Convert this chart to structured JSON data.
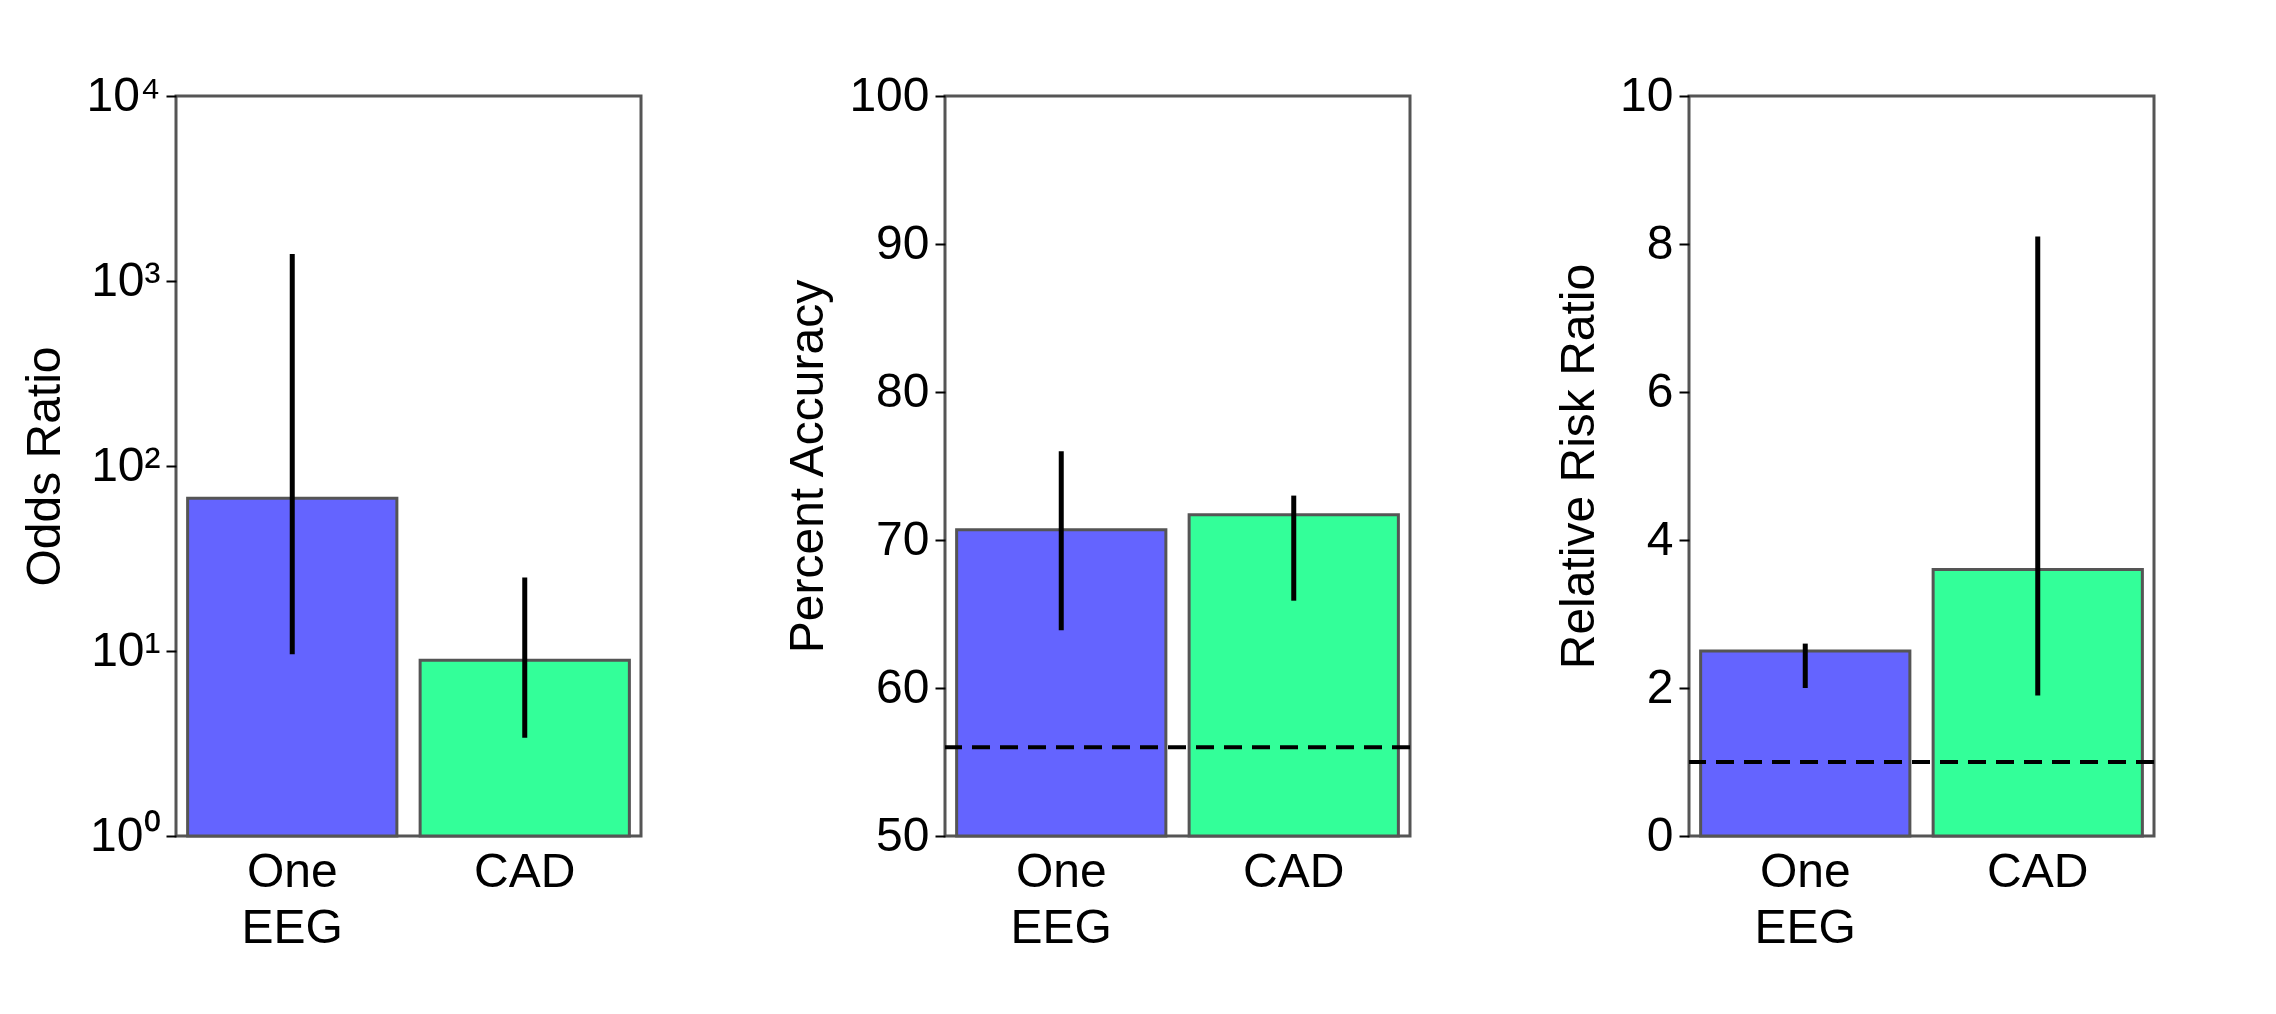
{
  "chart_data": [
    {
      "type": "bar",
      "ylabel": "Odds Ratio",
      "categories": [
        "One EEG",
        "CAD"
      ],
      "values": [
        67,
        8.9
      ],
      "colors": [
        "#6464ff",
        "#33ff99"
      ],
      "errors": [
        [
          9.6,
          1400
        ],
        [
          3.4,
          25
        ]
      ],
      "log": true,
      "ylim": [
        1,
        10000
      ],
      "yticks": [
        {
          "value": 1,
          "label": "10⁰"
        },
        {
          "value": 10,
          "label": "10¹"
        },
        {
          "value": 100,
          "label": "10²"
        },
        {
          "value": 1000,
          "label": "10³"
        },
        {
          "value": 10000,
          "label": "10⁴"
        }
      ]
    },
    {
      "type": "bar",
      "ylabel": "Percent Accuracy",
      "categories": [
        "One EEG",
        "CAD"
      ],
      "values": [
        70.7,
        71.7
      ],
      "colors": [
        "#6464ff",
        "#33ff99"
      ],
      "errors": [
        [
          63.9,
          76
        ],
        [
          65.9,
          73
        ]
      ],
      "ylim": [
        50,
        100
      ],
      "yticks": [
        50,
        60,
        70,
        80,
        90,
        100
      ],
      "ref_lines": [
        {
          "axis": "y",
          "value": 56,
          "line_style": "dashed",
          "color": "#000000"
        }
      ]
    },
    {
      "type": "bar",
      "ylabel": "Relative Risk Ratio",
      "categories": [
        "One EEG",
        "CAD"
      ],
      "values": [
        2.5,
        3.6
      ],
      "colors": [
        "#6464ff",
        "#33ff99"
      ],
      "errors": [
        [
          2.0,
          2.6
        ],
        [
          1.9,
          8.1
        ]
      ],
      "ylim": [
        0,
        10
      ],
      "yticks": [
        0,
        2,
        4,
        6,
        8,
        10
      ],
      "ref_lines": [
        {
          "axis": "y",
          "value": 1,
          "line_style": "dashed",
          "color": "#000000"
        }
      ]
    }
  ]
}
